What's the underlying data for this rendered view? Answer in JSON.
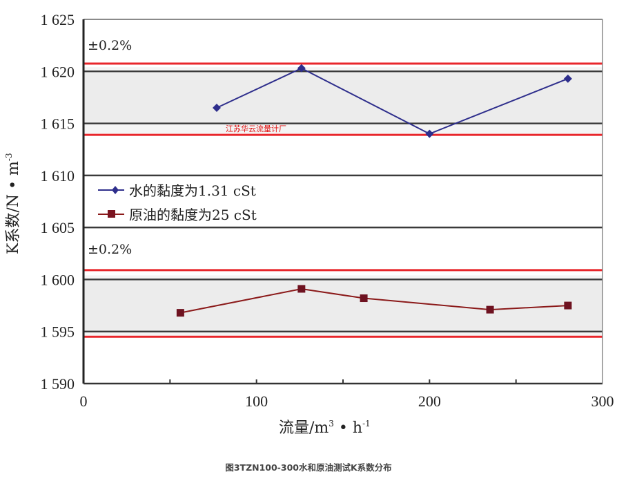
{
  "chart_data": {
    "type": "line",
    "title": "图3TZN100-300水和原油测试K系数分布",
    "xlabel": "流量/m³·h⁻¹",
    "ylabel": "K系数/N·m⁻³",
    "xlim": [
      0,
      300
    ],
    "ylim": [
      1590,
      1625
    ],
    "x_ticks": [
      0,
      100,
      200,
      300
    ],
    "x_tick_labels": [
      "0",
      "100",
      "200",
      "300"
    ],
    "x_minor_ticks": [
      50,
      150,
      250
    ],
    "y_ticks": [
      1590,
      1595,
      1600,
      1605,
      1610,
      1615,
      1620,
      1625
    ],
    "y_tick_labels": [
      "1 590",
      "1 595",
      "1 600",
      "1 605",
      "1 610",
      "1 615",
      "1 620",
      "1 625"
    ],
    "grid": true,
    "legend_position": "center-left",
    "series": [
      {
        "name": "水的黏度为1.31 cSt",
        "color": "#2e2e8c",
        "marker": "diamond",
        "x": [
          77,
          126,
          200,
          280
        ],
        "y": [
          1616.5,
          1620.3,
          1614.0,
          1619.3
        ]
      },
      {
        "name": "原油的黏度为25 cSt",
        "color": "#8b1a1a",
        "marker": "square",
        "x": [
          56,
          126,
          162,
          235,
          280
        ],
        "y": [
          1596.8,
          1599.1,
          1598.2,
          1597.1,
          1597.5
        ]
      }
    ],
    "bands": [
      {
        "label": "±0.2%",
        "upper": 1620.75,
        "lower": 1613.9,
        "inner_upper": 1620,
        "inner_lower": 1615,
        "line_color": "#e8262b"
      },
      {
        "label": "±0.2%",
        "upper": 1600.9,
        "lower": 1594.5,
        "inner_upper": 1600,
        "inner_lower": 1595,
        "line_color": "#e8262b"
      }
    ],
    "annotations": [
      "±0.2%",
      "±0.2%",
      "江苏华云流量计厂"
    ]
  },
  "labels": {
    "band_upper": "±0.2%",
    "band_lower": "±0.2%",
    "legend_water": "水的黏度为1.31 cSt",
    "legend_oil": "原油的黏度为25 cSt",
    "watermark": "江苏华云流量计厂",
    "xaxis_title_main": "流量/m",
    "xaxis_title_sup1": "3",
    "xaxis_title_mid": " • h",
    "xaxis_title_sup2": "-1",
    "yaxis_title_main": "K系数/N • m",
    "yaxis_title_sup": "-3",
    "caption": "图3TZN100-300水和原油测试K系数分布"
  }
}
